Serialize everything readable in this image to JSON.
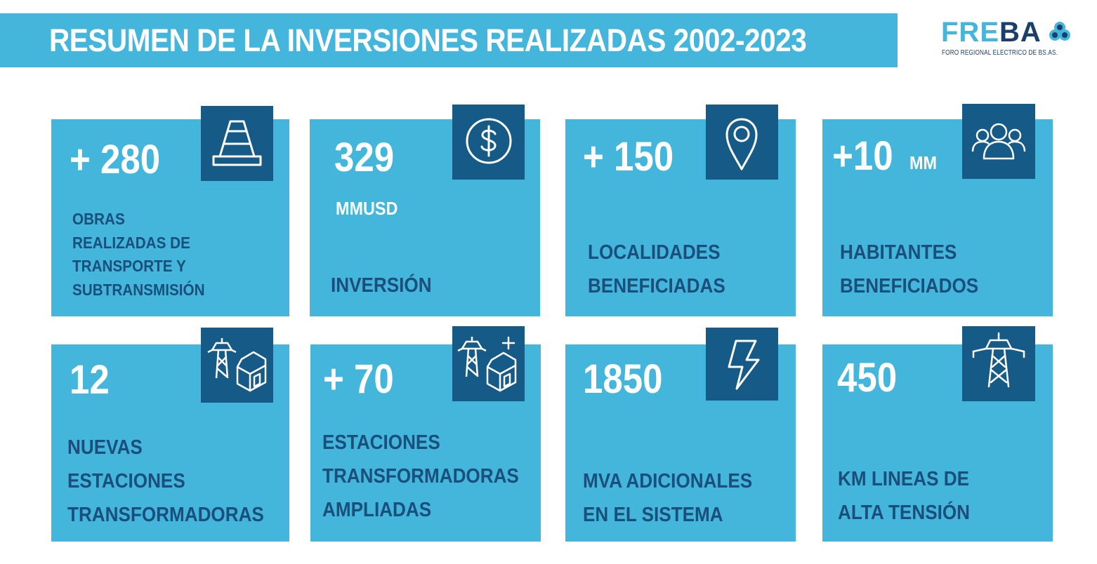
{
  "header": {
    "title": "RESUMEN DE LA INVERSIONES REALIZADAS 2002-2023",
    "logo_name_part1": "FRE",
    "logo_name_part2": "BA",
    "logo_subtitle": "FORO REGIONAL ELECTRICO DE BS.AS."
  },
  "colors": {
    "card_bg": "#44b6db",
    "icon_bg": "#165a87",
    "label_text": "#1a4f7c",
    "number_text": "#ffffff"
  },
  "stats": [
    {
      "value": "+ 280",
      "unit": "",
      "icon": "traffic-cone-icon",
      "label_lines": [
        "OBRAS",
        "REALIZADAS DE",
        "TRANSPORTE Y",
        "SUBTRANSMISIÓN"
      ]
    },
    {
      "value": "329",
      "unit": "MMUSD",
      "icon": "dollar-icon",
      "label_lines": [
        "INVERSIÓN"
      ]
    },
    {
      "value": "+ 150",
      "unit": "",
      "icon": "location-pin-icon",
      "label_lines": [
        "LOCALIDADES",
        "BENEFICIADAS"
      ]
    },
    {
      "value": "+10",
      "unit": "MM",
      "icon": "people-icon",
      "label_lines": [
        "HABITANTES",
        "BENEFICIADOS"
      ]
    },
    {
      "value": "12",
      "unit": "",
      "icon": "substation-icon",
      "label_lines": [
        "NUEVAS",
        "ESTACIONES",
        "TRANSFORMADORAS"
      ]
    },
    {
      "value": "+ 70",
      "unit": "",
      "icon": "substation-plus-icon",
      "label_lines": [
        "ESTACIONES",
        "TRANSFORMADORAS",
        "AMPLIADAS"
      ]
    },
    {
      "value": "1850",
      "unit": "",
      "icon": "lightning-icon",
      "label_lines": [
        "MVA ADICIONALES",
        "EN EL SISTEMA"
      ]
    },
    {
      "value": "450",
      "unit": "",
      "icon": "power-tower-icon",
      "label_lines": [
        "KM LINEAS DE",
        "ALTA TENSIÓN"
      ]
    }
  ]
}
